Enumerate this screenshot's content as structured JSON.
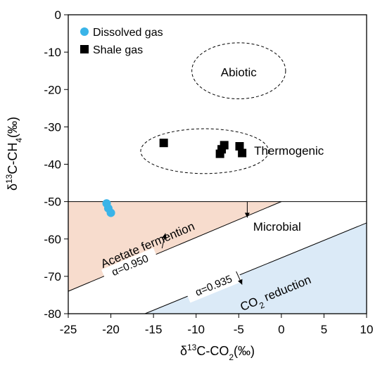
{
  "chart_data": {
    "type": "scatter",
    "xlabel_parts": [
      "δ",
      "13",
      "C-CO",
      "2",
      "(‰)"
    ],
    "ylabel_parts": [
      "δ",
      "13",
      "C-CH",
      "4",
      "(‰)"
    ],
    "xlim": [
      -25,
      10
    ],
    "ylim": [
      -80,
      0
    ],
    "x_ticks": [
      -25,
      -20,
      -15,
      -10,
      -5,
      0,
      5,
      10
    ],
    "y_ticks": [
      0,
      -10,
      -20,
      -30,
      -40,
      -50,
      -60,
      -70,
      -80
    ],
    "grid": false,
    "legend_position": "top-left",
    "series": [
      {
        "name": "Dissolved gas",
        "marker": "circle",
        "color": "#3ab4e8",
        "points": [
          [
            -20.5,
            -50.5
          ],
          [
            -20.3,
            -51.8
          ],
          [
            -20.0,
            -53.0
          ]
        ]
      },
      {
        "name": "Shale gas",
        "marker": "square",
        "color": "#000000",
        "points": [
          [
            -13.8,
            -34.3
          ],
          [
            -7.2,
            -37.2
          ],
          [
            -7.0,
            -36.0
          ],
          [
            -6.7,
            -34.9
          ],
          [
            -4.9,
            -35.2
          ],
          [
            -4.6,
            -37.0
          ]
        ]
      }
    ],
    "regions": {
      "abiotic": {
        "label": "Abiotic",
        "center": [
          -5.0,
          -15.0
        ],
        "radii": [
          5.5,
          7.5
        ]
      },
      "thermogenic": {
        "label": "Thermogenic",
        "center": [
          -9.0,
          -36.5
        ],
        "radii": [
          7.5,
          6.0
        ]
      },
      "microbial_label": "Microbial",
      "acetate": {
        "label": "Acetate fermention",
        "color": "#f7dccd"
      },
      "co2_reduction": {
        "label_parts": [
          "CO",
          "2",
          " reduction"
        ],
        "color": "#dbeaf7"
      }
    },
    "lines": [
      {
        "label": "α=0.950",
        "from": [
          -25,
          -74.0
        ],
        "to": [
          0,
          -50
        ]
      },
      {
        "label": "α=0.935",
        "from": [
          -16,
          -80
        ],
        "to": [
          10,
          -55.7
        ]
      }
    ]
  }
}
